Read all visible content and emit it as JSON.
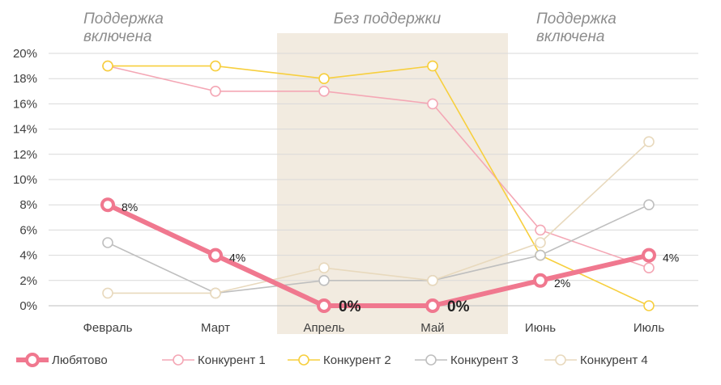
{
  "chart_data": {
    "type": "line",
    "title": "",
    "xlabel": "",
    "ylabel": "",
    "categories": [
      "Февраль",
      "Март",
      "Апрель",
      "Май",
      "Июнь",
      "Июль"
    ],
    "y_ticks": [
      "0%",
      "2%",
      "4%",
      "6%",
      "8%",
      "10%",
      "12%",
      "14%",
      "16%",
      "18%",
      "20%"
    ],
    "ylim": [
      0,
      20
    ],
    "grid": true,
    "legend_position": "bottom",
    "regions": [
      {
        "label_line1": "Поддержка",
        "label_line2": "включена",
        "shaded": false
      },
      {
        "label_line1": "Без поддержки",
        "label_line2": "",
        "shaded": true,
        "from_category": "Апрель",
        "to_category": "Май",
        "color": "#f2ebe0"
      },
      {
        "label_line1": "Поддержка",
        "label_line2": "включена",
        "shaded": false
      }
    ],
    "series": [
      {
        "name": "Любятово",
        "values": [
          8,
          4,
          0,
          0,
          2,
          4
        ],
        "color": "#f0788f",
        "emphasis": true,
        "labels": [
          "8%",
          "4%",
          "0%",
          "0%",
          "2%",
          "4%"
        ],
        "big_labels": [
          false,
          false,
          true,
          true,
          false,
          false
        ]
      },
      {
        "name": "Конкурент 1",
        "values": [
          19,
          17,
          17,
          16,
          6,
          3
        ],
        "color": "#f4a7b5"
      },
      {
        "name": "Конкурент 2",
        "values": [
          19,
          19,
          18,
          19,
          4,
          0
        ],
        "color": "#f7cf3e"
      },
      {
        "name": "Конкурент 3",
        "values": [
          5,
          1,
          2,
          2,
          4,
          8
        ],
        "color": "#bfbfbf"
      },
      {
        "name": "Конкурент 4",
        "values": [
          1,
          1,
          3,
          2,
          5,
          13
        ],
        "color": "#e8d9bd"
      }
    ]
  }
}
